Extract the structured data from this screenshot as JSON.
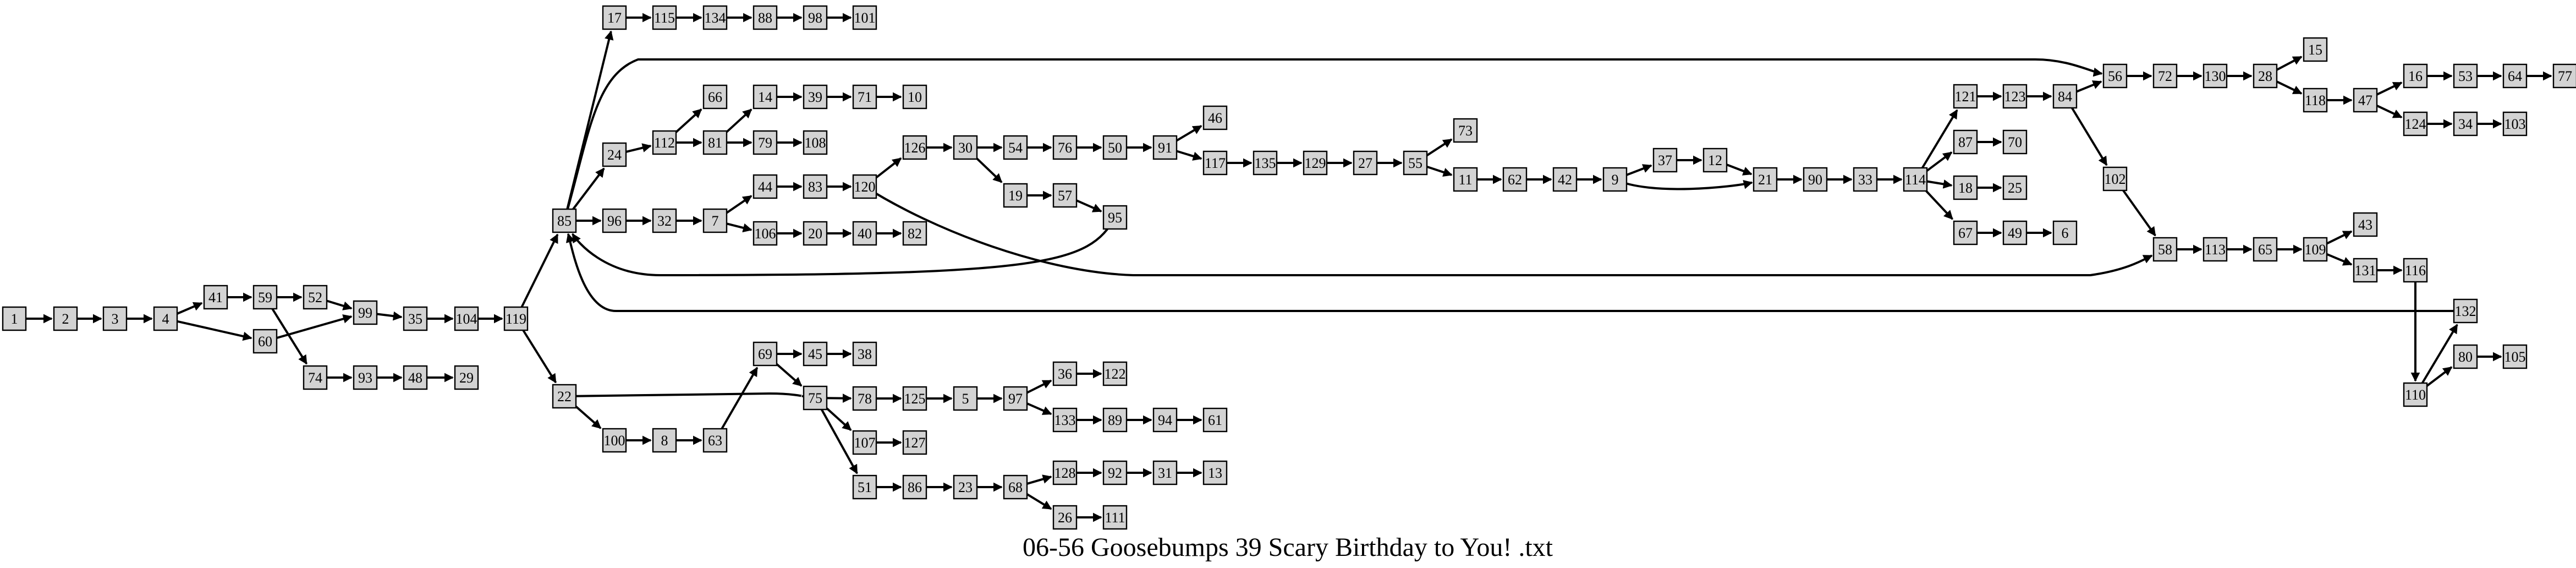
{
  "caption": "06-56 Goosebumps 39 Scary Birthday to You! .txt",
  "nodes": [
    "1",
    "2",
    "3",
    "4",
    "41",
    "60",
    "59",
    "52",
    "74",
    "99",
    "35",
    "104",
    "119",
    "17",
    "85",
    "22",
    "115",
    "134",
    "88",
    "98",
    "101",
    "24",
    "96",
    "100",
    "8",
    "63",
    "112",
    "32",
    "7",
    "81",
    "66",
    "14",
    "79",
    "44",
    "106",
    "39",
    "108",
    "83",
    "20",
    "71",
    "120",
    "40",
    "10",
    "126",
    "82",
    "30",
    "54",
    "19",
    "76",
    "57",
    "50",
    "95",
    "91",
    "46",
    "117",
    "135",
    "129",
    "27",
    "55",
    "73",
    "11",
    "62",
    "42",
    "9",
    "37",
    "12",
    "21",
    "90",
    "33",
    "114",
    "121",
    "87",
    "18",
    "67",
    "123",
    "70",
    "25",
    "49",
    "84",
    "6",
    "56",
    "102",
    "72",
    "58",
    "130",
    "113",
    "28",
    "65",
    "15",
    "118",
    "109",
    "47",
    "43",
    "131",
    "16",
    "124",
    "116",
    "53",
    "34",
    "64",
    "103",
    "77",
    "110",
    "132",
    "80",
    "105",
    "93",
    "48",
    "29",
    "69",
    "75",
    "45",
    "38",
    "78",
    "107",
    "51",
    "125",
    "127",
    "86",
    "5",
    "23",
    "97",
    "68",
    "36",
    "133",
    "128",
    "26",
    "122",
    "89",
    "92",
    "111",
    "94",
    "31",
    "61",
    "13"
  ],
  "edges": [
    [
      "1",
      "2"
    ],
    [
      "2",
      "3"
    ],
    [
      "3",
      "4"
    ],
    [
      "4",
      "41"
    ],
    [
      "4",
      "60"
    ],
    [
      "41",
      "59"
    ],
    [
      "59",
      "52"
    ],
    [
      "59",
      "74"
    ],
    [
      "60",
      "99"
    ],
    [
      "52",
      "99"
    ],
    [
      "74",
      "93"
    ],
    [
      "93",
      "48"
    ],
    [
      "48",
      "29"
    ],
    [
      "99",
      "35"
    ],
    [
      "35",
      "104"
    ],
    [
      "104",
      "119"
    ],
    [
      "119",
      "85"
    ],
    [
      "119",
      "22"
    ],
    [
      "85",
      "17"
    ],
    [
      "85",
      "24"
    ],
    [
      "85",
      "96"
    ],
    [
      "85",
      "56"
    ],
    [
      "17",
      "115"
    ],
    [
      "115",
      "134"
    ],
    [
      "134",
      "88"
    ],
    [
      "88",
      "98"
    ],
    [
      "98",
      "101"
    ],
    [
      "24",
      "112"
    ],
    [
      "112",
      "66"
    ],
    [
      "112",
      "81"
    ],
    [
      "81",
      "14"
    ],
    [
      "81",
      "79"
    ],
    [
      "14",
      "39"
    ],
    [
      "39",
      "71"
    ],
    [
      "71",
      "10"
    ],
    [
      "79",
      "108"
    ],
    [
      "96",
      "32"
    ],
    [
      "32",
      "7"
    ],
    [
      "7",
      "44"
    ],
    [
      "7",
      "106"
    ],
    [
      "44",
      "83"
    ],
    [
      "83",
      "120"
    ],
    [
      "106",
      "20"
    ],
    [
      "20",
      "40"
    ],
    [
      "40",
      "82"
    ],
    [
      "120",
      "126"
    ],
    [
      "120",
      "58"
    ],
    [
      "126",
      "30"
    ],
    [
      "30",
      "54"
    ],
    [
      "30",
      "19"
    ],
    [
      "54",
      "76"
    ],
    [
      "76",
      "50"
    ],
    [
      "50",
      "91"
    ],
    [
      "19",
      "57"
    ],
    [
      "57",
      "95"
    ],
    [
      "95",
      "85"
    ],
    [
      "91",
      "46"
    ],
    [
      "91",
      "117"
    ],
    [
      "117",
      "135"
    ],
    [
      "135",
      "129"
    ],
    [
      "129",
      "27"
    ],
    [
      "27",
      "55"
    ],
    [
      "55",
      "73"
    ],
    [
      "55",
      "11"
    ],
    [
      "11",
      "62"
    ],
    [
      "62",
      "42"
    ],
    [
      "42",
      "9"
    ],
    [
      "9",
      "37"
    ],
    [
      "9",
      "21"
    ],
    [
      "37",
      "12"
    ],
    [
      "12",
      "21"
    ],
    [
      "21",
      "90"
    ],
    [
      "90",
      "33"
    ],
    [
      "33",
      "114"
    ],
    [
      "114",
      "121"
    ],
    [
      "114",
      "87"
    ],
    [
      "114",
      "18"
    ],
    [
      "114",
      "67"
    ],
    [
      "121",
      "123"
    ],
    [
      "123",
      "84"
    ],
    [
      "84",
      "56"
    ],
    [
      "84",
      "102"
    ],
    [
      "87",
      "70"
    ],
    [
      "18",
      "25"
    ],
    [
      "67",
      "49"
    ],
    [
      "49",
      "6"
    ],
    [
      "102",
      "58"
    ],
    [
      "56",
      "72"
    ],
    [
      "72",
      "130"
    ],
    [
      "130",
      "28"
    ],
    [
      "28",
      "15"
    ],
    [
      "28",
      "118"
    ],
    [
      "118",
      "47"
    ],
    [
      "47",
      "16"
    ],
    [
      "47",
      "124"
    ],
    [
      "16",
      "53"
    ],
    [
      "53",
      "64"
    ],
    [
      "64",
      "77"
    ],
    [
      "124",
      "34"
    ],
    [
      "34",
      "103"
    ],
    [
      "58",
      "113"
    ],
    [
      "113",
      "65"
    ],
    [
      "65",
      "109"
    ],
    [
      "109",
      "43"
    ],
    [
      "109",
      "131"
    ],
    [
      "131",
      "116"
    ],
    [
      "116",
      "110"
    ],
    [
      "110",
      "132"
    ],
    [
      "110",
      "80"
    ],
    [
      "80",
      "105"
    ],
    [
      "132",
      "85"
    ],
    [
      "22",
      "100"
    ],
    [
      "22",
      "75"
    ],
    [
      "100",
      "8"
    ],
    [
      "8",
      "63"
    ],
    [
      "63",
      "69"
    ],
    [
      "69",
      "45"
    ],
    [
      "69",
      "75"
    ],
    [
      "45",
      "38"
    ],
    [
      "75",
      "78"
    ],
    [
      "75",
      "107"
    ],
    [
      "75",
      "51"
    ],
    [
      "78",
      "125"
    ],
    [
      "125",
      "5"
    ],
    [
      "5",
      "97"
    ],
    [
      "97",
      "36"
    ],
    [
      "97",
      "133"
    ],
    [
      "36",
      "122"
    ],
    [
      "133",
      "89"
    ],
    [
      "89",
      "94"
    ],
    [
      "94",
      "61"
    ],
    [
      "107",
      "127"
    ],
    [
      "51",
      "86"
    ],
    [
      "86",
      "23"
    ],
    [
      "23",
      "68"
    ],
    [
      "68",
      "128"
    ],
    [
      "68",
      "26"
    ],
    [
      "128",
      "92"
    ],
    [
      "92",
      "31"
    ],
    [
      "31",
      "13"
    ],
    [
      "26",
      "111"
    ]
  ]
}
